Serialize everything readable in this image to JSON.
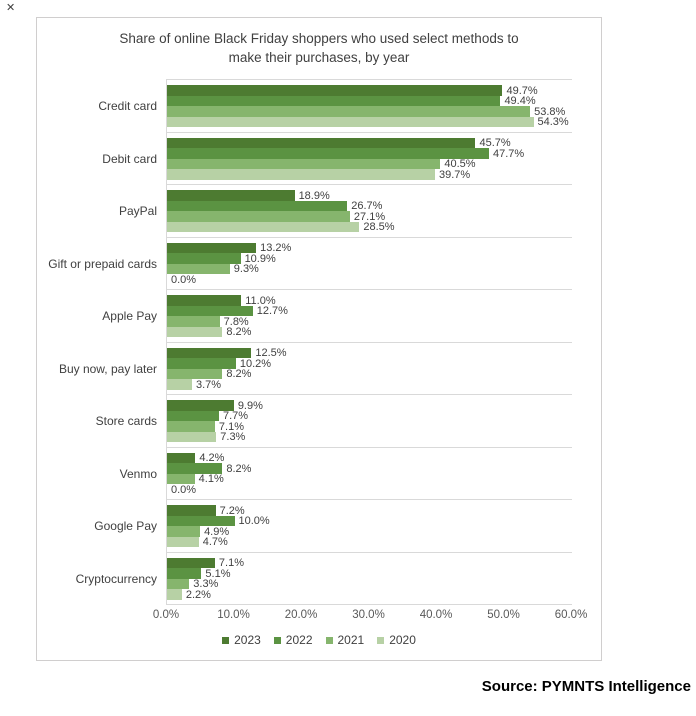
{
  "page": {
    "close_icon": "✕",
    "source": "Source: PYMNTS Intelligence"
  },
  "chart_data": {
    "type": "bar",
    "orientation": "horizontal",
    "title": "Share of online Black Friday shoppers who used select methods to make their purchases, by year",
    "title_lines": [
      "Share of online Black Friday shoppers who used select methods to",
      "make their purchases, by year"
    ],
    "categories": [
      "Credit card",
      "Debit card",
      "PayPal",
      "Gift or prepaid cards",
      "Apple Pay",
      "Buy now, pay later",
      "Store cards",
      "Venmo",
      "Google Pay",
      "Cryptocurrency"
    ],
    "series": [
      {
        "name": "2023",
        "color": "#4d7b31",
        "values": [
          49.7,
          45.7,
          18.9,
          13.2,
          11.0,
          12.5,
          9.9,
          4.2,
          7.2,
          7.1
        ]
      },
      {
        "name": "2022",
        "color": "#5b9342",
        "values": [
          49.4,
          47.7,
          26.7,
          10.9,
          12.7,
          10.2,
          7.7,
          8.2,
          10.0,
          5.1
        ]
      },
      {
        "name": "2021",
        "color": "#86b56d",
        "values": [
          53.8,
          40.5,
          27.1,
          9.3,
          7.8,
          8.2,
          7.1,
          4.1,
          4.9,
          3.3
        ]
      },
      {
        "name": "2020",
        "color": "#b7d1a5",
        "values": [
          54.3,
          39.7,
          28.5,
          0.0,
          8.2,
          3.7,
          7.3,
          0.0,
          4.7,
          2.2
        ]
      }
    ],
    "xlim": [
      0,
      60
    ],
    "x_ticks": [
      "0.0%",
      "10.0%",
      "20.0%",
      "30.0%",
      "40.0%",
      "50.0%",
      "60.0%"
    ],
    "value_label_format": "one-decimal-percent",
    "grid": "horizontal category separators only, no vertical gridlines",
    "legend_position": "bottom-center",
    "colors": {
      "plot_border": "#d9d9d9",
      "chart_border": "#d0cece",
      "title_text": "#404040",
      "data_label_text": "#404040",
      "tick_text": "#595959"
    }
  }
}
